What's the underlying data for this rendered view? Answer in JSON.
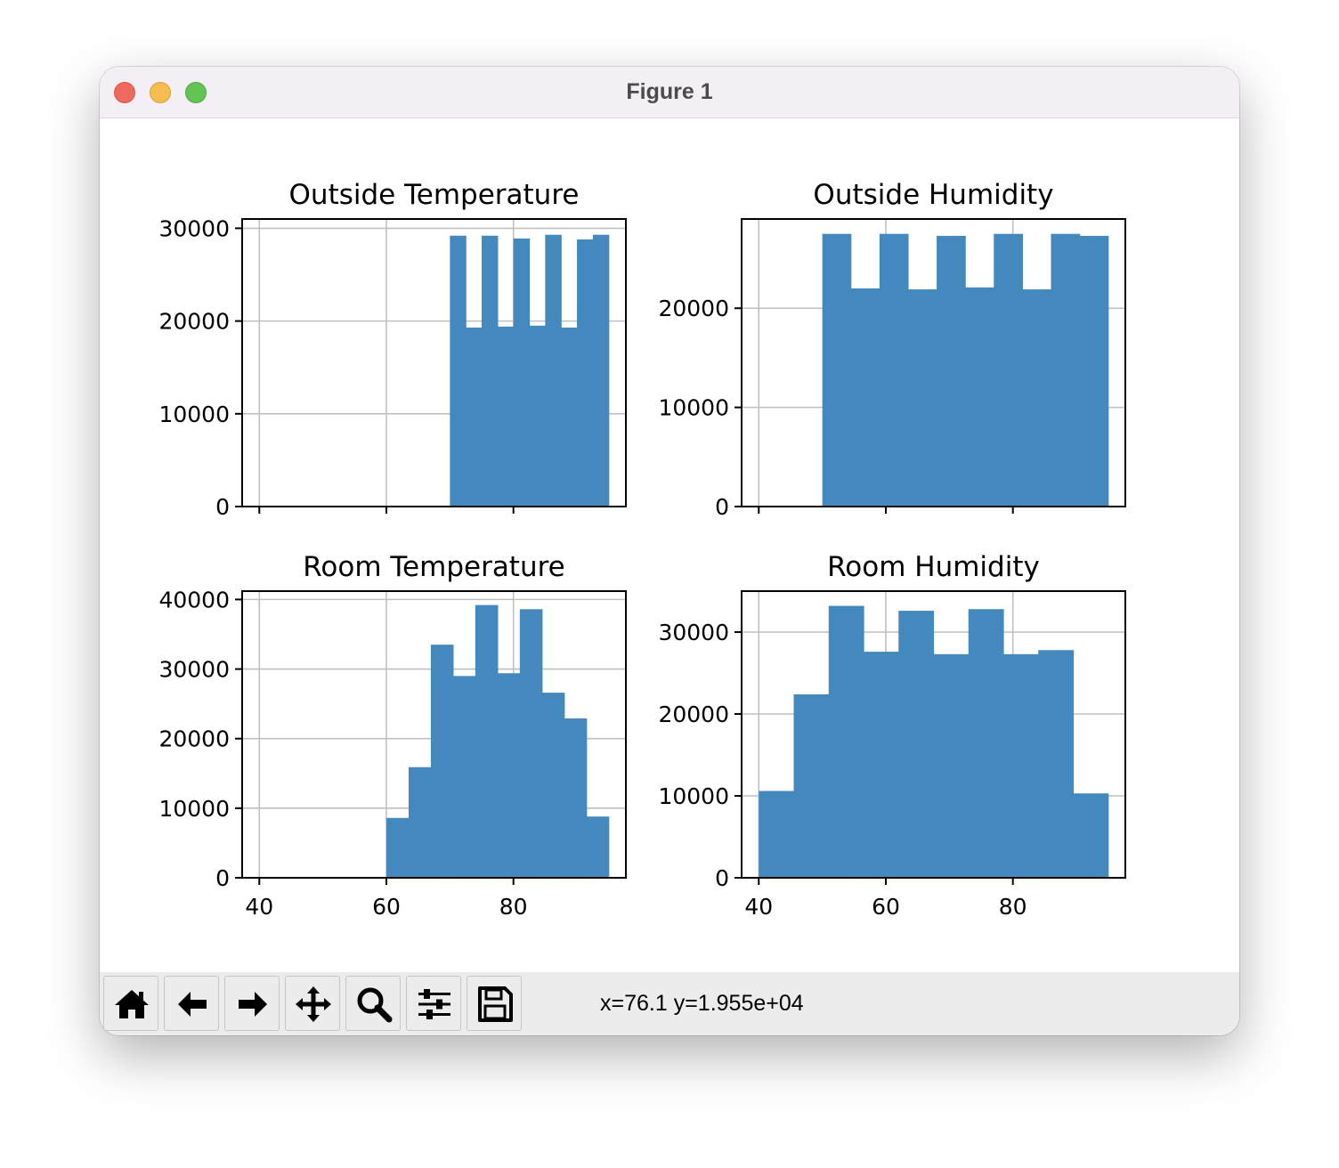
{
  "window": {
    "title": "Figure 1"
  },
  "toolbar": {
    "buttons": [
      {
        "name": "home-button",
        "icon": "home-icon"
      },
      {
        "name": "back-button",
        "icon": "arrow-left-icon"
      },
      {
        "name": "forward-button",
        "icon": "arrow-right-icon"
      },
      {
        "name": "pan-button",
        "icon": "move-icon"
      },
      {
        "name": "zoom-button",
        "icon": "magnifier-icon"
      },
      {
        "name": "configure-subplots-button",
        "icon": "sliders-icon"
      },
      {
        "name": "save-button",
        "icon": "floppy-disk-icon"
      }
    ],
    "coordinates": "x=76.1 y=1.955e+04"
  },
  "colors": {
    "bar": "#4489bd",
    "grid": "#c0c0c0"
  },
  "chart_data": [
    {
      "type": "bar",
      "title": "Outside Temperature",
      "xlim": [
        37.3,
        97.7
      ],
      "ylim": [
        0,
        31000
      ],
      "xticks": [
        40,
        60,
        80
      ],
      "xtick_labels_visible": false,
      "yticks": [
        0,
        10000,
        20000,
        30000
      ],
      "ytick_labels": [
        "0",
        "10000",
        "20000",
        "30000"
      ],
      "grid": true,
      "bins": [
        {
          "x0": 70.0,
          "x1": 72.5,
          "value": 29200
        },
        {
          "x0": 72.5,
          "x1": 75.0,
          "value": 19300
        },
        {
          "x0": 75.0,
          "x1": 77.5,
          "value": 29200
        },
        {
          "x0": 77.5,
          "x1": 80.0,
          "value": 19400
        },
        {
          "x0": 80.0,
          "x1": 82.5,
          "value": 28900
        },
        {
          "x0": 82.5,
          "x1": 85.0,
          "value": 19500
        },
        {
          "x0": 85.0,
          "x1": 87.5,
          "value": 29300
        },
        {
          "x0": 87.5,
          "x1": 90.0,
          "value": 19300
        },
        {
          "x0": 90.0,
          "x1": 92.5,
          "value": 28800
        },
        {
          "x0": 92.5,
          "x1": 95.0,
          "value": 29300
        }
      ]
    },
    {
      "type": "bar",
      "title": "Outside Humidity",
      "xlim": [
        37.3,
        97.7
      ],
      "ylim": [
        0,
        29000
      ],
      "xticks": [
        40,
        60,
        80
      ],
      "xtick_labels_visible": false,
      "yticks": [
        0,
        10000,
        20000
      ],
      "ytick_labels": [
        "0",
        "10000",
        "20000"
      ],
      "grid": true,
      "bins": [
        {
          "x0": 50.0,
          "x1": 54.5,
          "value": 27500
        },
        {
          "x0": 54.5,
          "x1": 59.0,
          "value": 22000
        },
        {
          "x0": 59.0,
          "x1": 63.5,
          "value": 27500
        },
        {
          "x0": 63.5,
          "x1": 68.0,
          "value": 21900
        },
        {
          "x0": 68.0,
          "x1": 72.5,
          "value": 27300
        },
        {
          "x0": 72.5,
          "x1": 77.0,
          "value": 22100
        },
        {
          "x0": 77.0,
          "x1": 81.5,
          "value": 27500
        },
        {
          "x0": 81.5,
          "x1": 86.0,
          "value": 21900
        },
        {
          "x0": 86.0,
          "x1": 90.5,
          "value": 27500
        },
        {
          "x0": 90.5,
          "x1": 95.0,
          "value": 27300
        }
      ]
    },
    {
      "type": "bar",
      "title": "Room Temperature",
      "xlim": [
        37.3,
        97.7
      ],
      "ylim": [
        0,
        41200
      ],
      "xticks": [
        40,
        60,
        80
      ],
      "xtick_labels": [
        "40",
        "60",
        "80"
      ],
      "xtick_labels_visible": true,
      "yticks": [
        0,
        10000,
        20000,
        30000,
        40000
      ],
      "ytick_labels": [
        "0",
        "10000",
        "20000",
        "30000",
        "40000"
      ],
      "grid": true,
      "bins": [
        {
          "x0": 60.0,
          "x1": 63.5,
          "value": 8600
        },
        {
          "x0": 63.5,
          "x1": 67.0,
          "value": 15900
        },
        {
          "x0": 67.0,
          "x1": 70.5,
          "value": 33500
        },
        {
          "x0": 70.5,
          "x1": 74.0,
          "value": 29000
        },
        {
          "x0": 74.0,
          "x1": 77.5,
          "value": 39200
        },
        {
          "x0": 77.5,
          "x1": 81.0,
          "value": 29400
        },
        {
          "x0": 81.0,
          "x1": 84.5,
          "value": 38600
        },
        {
          "x0": 84.5,
          "x1": 88.0,
          "value": 26600
        },
        {
          "x0": 88.0,
          "x1": 91.5,
          "value": 22900
        },
        {
          "x0": 91.5,
          "x1": 95.0,
          "value": 8800
        }
      ]
    },
    {
      "type": "bar",
      "title": "Room Humidity",
      "xlim": [
        37.3,
        97.7
      ],
      "ylim": [
        0,
        35000
      ],
      "xticks": [
        40,
        60,
        80
      ],
      "xtick_labels": [
        "40",
        "60",
        "80"
      ],
      "xtick_labels_visible": true,
      "yticks": [
        0,
        10000,
        20000,
        30000
      ],
      "ytick_labels": [
        "0",
        "10000",
        "20000",
        "30000"
      ],
      "grid": true,
      "bins": [
        {
          "x0": 40.0,
          "x1": 45.5,
          "value": 10600
        },
        {
          "x0": 45.5,
          "x1": 51.0,
          "value": 22400
        },
        {
          "x0": 51.0,
          "x1": 56.5,
          "value": 33200
        },
        {
          "x0": 56.5,
          "x1": 62.0,
          "value": 27600
        },
        {
          "x0": 62.0,
          "x1": 67.5,
          "value": 32600
        },
        {
          "x0": 67.5,
          "x1": 73.0,
          "value": 27300
        },
        {
          "x0": 73.0,
          "x1": 78.5,
          "value": 32800
        },
        {
          "x0": 78.5,
          "x1": 84.0,
          "value": 27300
        },
        {
          "x0": 84.0,
          "x1": 89.5,
          "value": 27800
        },
        {
          "x0": 89.5,
          "x1": 95.0,
          "value": 10300
        }
      ]
    }
  ]
}
